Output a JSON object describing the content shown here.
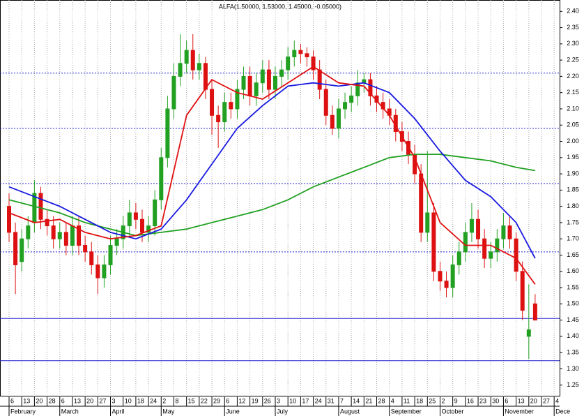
{
  "chart_data": {
    "type": "candlestick",
    "title": "ALFA(1.50000, 1.53000, 1.45000, -0.05000)",
    "xlim": [
      -1.43,
      86.86
    ],
    "ylim": [
      1.215,
      2.435
    ],
    "xticks": [
      {
        "value": 0,
        "label": "6"
      },
      {
        "value": 2,
        "label": "13"
      },
      {
        "value": 4,
        "label": "20"
      },
      {
        "value": 6,
        "label": "28"
      },
      {
        "value": 8,
        "label": "6"
      },
      {
        "value": 10,
        "label": "13"
      },
      {
        "value": 12,
        "label": "20"
      },
      {
        "value": 14,
        "label": "27"
      },
      {
        "value": 16,
        "label": "3"
      },
      {
        "value": 18,
        "label": "10"
      },
      {
        "value": 20,
        "label": "18"
      },
      {
        "value": 22,
        "label": "24"
      },
      {
        "value": 24,
        "label": "2"
      },
      {
        "value": 26,
        "label": "8"
      },
      {
        "value": 28,
        "label": "15"
      },
      {
        "value": 30,
        "label": "22"
      },
      {
        "value": 32,
        "label": "29"
      },
      {
        "value": 34,
        "label": "6"
      },
      {
        "value": 36,
        "label": "12"
      },
      {
        "value": 38,
        "label": "19"
      },
      {
        "value": 40,
        "label": "26"
      },
      {
        "value": 42,
        "label": "3"
      },
      {
        "value": 44,
        "label": "10"
      },
      {
        "value": 46,
        "label": "17"
      },
      {
        "value": 48,
        "label": "24"
      },
      {
        "value": 50,
        "label": "31"
      },
      {
        "value": 52,
        "label": "7"
      },
      {
        "value": 54,
        "label": "14"
      },
      {
        "value": 56,
        "label": "21"
      },
      {
        "value": 58,
        "label": "28"
      },
      {
        "value": 60,
        "label": "4"
      },
      {
        "value": 62,
        "label": "11"
      },
      {
        "value": 64,
        "label": "18"
      },
      {
        "value": 66,
        "label": "25"
      },
      {
        "value": 68,
        "label": "2"
      },
      {
        "value": 70,
        "label": "9"
      },
      {
        "value": 72,
        "label": "16"
      },
      {
        "value": 74,
        "label": "23"
      },
      {
        "value": 76,
        "label": "30"
      },
      {
        "value": 78,
        "label": "6"
      },
      {
        "value": 80,
        "label": "13"
      },
      {
        "value": 82,
        "label": "20"
      },
      {
        "value": 84,
        "label": "27"
      },
      {
        "value": 86,
        "label": "4"
      }
    ],
    "month_ticks": [
      {
        "value": 0,
        "label": "February"
      },
      {
        "value": 8,
        "label": "March"
      },
      {
        "value": 16,
        "label": "April"
      },
      {
        "value": 24,
        "label": "May"
      },
      {
        "value": 34,
        "label": "June"
      },
      {
        "value": 42,
        "label": "July"
      },
      {
        "value": 52,
        "label": "August"
      },
      {
        "value": 60,
        "label": "September"
      },
      {
        "value": 68,
        "label": "October"
      },
      {
        "value": 78,
        "label": "November"
      },
      {
        "value": 86,
        "label": "Dece"
      }
    ],
    "yticks": [
      1.25,
      {
        "value": 1.3,
        "label": "1.30"
      },
      1.35,
      {
        "value": 1.4,
        "label": "1.40"
      },
      1.45,
      {
        "value": 1.5,
        "label": "1.50"
      },
      1.55,
      {
        "value": 1.6,
        "label": "1.60"
      },
      1.65,
      {
        "value": 1.7,
        "label": "1.70"
      },
      1.75,
      {
        "value": 1.8,
        "label": "1.80"
      },
      1.85,
      {
        "value": 1.9,
        "label": "1.90"
      },
      1.95,
      {
        "value": 2.0,
        "label": "2.00"
      },
      2.05,
      {
        "value": 2.1,
        "label": "2.10"
      },
      2.15,
      {
        "value": 2.2,
        "label": "2.20"
      },
      2.25,
      {
        "value": 2.3,
        "label": "2.30"
      },
      2.35,
      {
        "value": 2.4,
        "label": "2.40"
      }
    ],
    "grid": true,
    "levels": [
      {
        "value": 2.21,
        "style": "dotted",
        "color": "#2222cc"
      },
      {
        "value": 2.04,
        "style": "dotted",
        "color": "#2222cc"
      },
      {
        "value": 1.87,
        "style": "dotted",
        "color": "#2222cc"
      },
      {
        "value": 1.66,
        "style": "dotted",
        "color": "#2222cc"
      },
      {
        "value": 1.455,
        "style": "solid",
        "color": "#2222cc"
      },
      {
        "value": 1.325,
        "style": "solid",
        "color": "#2222cc"
      }
    ],
    "up_color": "#22a022",
    "down_color": "#dd1111",
    "open": [
      1.8,
      1.72,
      1.63,
      1.7,
      1.75,
      1.84,
      1.76,
      1.74,
      1.7,
      1.72,
      1.68,
      1.74,
      1.68,
      1.66,
      1.62,
      1.58,
      1.62,
      1.68,
      1.7,
      1.74,
      1.78,
      1.76,
      1.72,
      1.74,
      1.82,
      1.95,
      2.1,
      2.2,
      2.24,
      2.28,
      2.22,
      2.24,
      2.16,
      2.08,
      2.06,
      2.12,
      2.1,
      2.16,
      2.2,
      2.14,
      2.18,
      2.22,
      2.16,
      2.2,
      2.22,
      2.26,
      2.28,
      2.27,
      2.26,
      2.22,
      2.16,
      2.08,
      2.04,
      2.1,
      2.12,
      2.14,
      2.18,
      2.19,
      2.14,
      2.12,
      2.1,
      2.08,
      2.03,
      2.0,
      1.96,
      1.9,
      1.72,
      1.78,
      1.6,
      1.57,
      1.55,
      1.62,
      1.66,
      1.72,
      1.76,
      1.7,
      1.64,
      1.66,
      1.7,
      1.74,
      1.7,
      1.6,
      1.4,
      1.5
    ],
    "high": [
      1.84,
      1.75,
      1.73,
      1.77,
      1.88,
      1.86,
      1.79,
      1.77,
      1.75,
      1.75,
      1.77,
      1.77,
      1.71,
      1.69,
      1.65,
      1.65,
      1.71,
      1.73,
      1.77,
      1.82,
      1.81,
      1.79,
      1.77,
      1.85,
      1.98,
      2.14,
      2.24,
      2.33,
      2.31,
      2.33,
      2.27,
      2.26,
      2.19,
      2.11,
      2.15,
      2.15,
      2.19,
      2.23,
      2.23,
      2.21,
      2.25,
      2.25,
      2.23,
      2.25,
      2.29,
      2.31,
      2.3,
      2.29,
      2.28,
      2.25,
      2.19,
      2.11,
      2.13,
      2.15,
      2.17,
      2.22,
      2.21,
      2.21,
      2.17,
      2.15,
      2.13,
      2.1,
      2.06,
      2.03,
      1.99,
      1.93,
      1.97,
      1.81,
      1.63,
      1.6,
      1.65,
      1.69,
      1.75,
      1.81,
      1.79,
      1.73,
      1.69,
      1.73,
      1.78,
      1.77,
      1.72,
      1.63,
      1.56,
      1.53
    ],
    "low": [
      1.69,
      1.53,
      1.6,
      1.67,
      1.72,
      1.73,
      1.71,
      1.67,
      1.67,
      1.65,
      1.65,
      1.65,
      1.63,
      1.59,
      1.53,
      1.55,
      1.59,
      1.65,
      1.67,
      1.71,
      1.73,
      1.69,
      1.69,
      1.71,
      1.79,
      1.92,
      2.07,
      2.17,
      2.21,
      2.19,
      2.19,
      2.13,
      2.02,
      1.98,
      2.03,
      2.07,
      2.07,
      2.13,
      2.11,
      2.11,
      2.15,
      2.13,
      2.13,
      2.17,
      2.19,
      2.23,
      2.24,
      2.23,
      2.19,
      2.13,
      2.05,
      2.02,
      2.01,
      2.07,
      2.09,
      2.11,
      2.15,
      2.11,
      2.09,
      2.07,
      2.05,
      2.0,
      1.97,
      1.93,
      1.87,
      1.69,
      1.69,
      1.57,
      1.54,
      1.52,
      1.52,
      1.59,
      1.63,
      1.69,
      1.67,
      1.61,
      1.61,
      1.63,
      1.67,
      1.67,
      1.57,
      1.45,
      1.33,
      1.45
    ],
    "close": [
      1.72,
      1.62,
      1.7,
      1.74,
      1.84,
      1.76,
      1.74,
      1.7,
      1.72,
      1.68,
      1.74,
      1.68,
      1.66,
      1.62,
      1.58,
      1.62,
      1.68,
      1.7,
      1.74,
      1.78,
      1.76,
      1.72,
      1.74,
      1.82,
      1.95,
      2.1,
      2.2,
      2.24,
      2.28,
      2.22,
      2.24,
      2.16,
      2.08,
      2.06,
      2.12,
      2.1,
      2.16,
      2.2,
      2.14,
      2.18,
      2.22,
      2.16,
      2.2,
      2.22,
      2.26,
      2.28,
      2.27,
      2.26,
      2.22,
      2.16,
      2.08,
      2.04,
      2.1,
      2.12,
      2.14,
      2.18,
      2.19,
      2.14,
      2.12,
      2.1,
      2.08,
      2.03,
      2.0,
      1.96,
      1.9,
      1.72,
      1.78,
      1.6,
      1.57,
      1.55,
      1.62,
      1.66,
      1.72,
      1.76,
      1.7,
      1.64,
      1.66,
      1.7,
      1.74,
      1.7,
      1.6,
      1.48,
      1.42,
      1.45
    ],
    "lines": [
      {
        "color": "#22a022",
        "x": [
          0,
          4,
          8,
          12,
          16,
          20,
          24,
          28,
          32,
          36,
          40,
          44,
          48,
          52,
          56,
          60,
          64,
          68,
          72,
          76,
          80,
          83
        ],
        "values": [
          1.82,
          1.8,
          1.78,
          1.75,
          1.73,
          1.71,
          1.72,
          1.73,
          1.75,
          1.77,
          1.79,
          1.82,
          1.86,
          1.89,
          1.92,
          1.95,
          1.96,
          1.96,
          1.95,
          1.94,
          1.92,
          1.91
        ]
      },
      {
        "color": "#1a1ae0",
        "x": [
          0,
          4,
          8,
          12,
          16,
          20,
          24,
          28,
          32,
          36,
          40,
          44,
          48,
          52,
          56,
          60,
          64,
          68,
          72,
          76,
          80,
          83
        ],
        "values": [
          1.86,
          1.83,
          1.8,
          1.76,
          1.72,
          1.7,
          1.73,
          1.82,
          1.93,
          2.04,
          2.11,
          2.17,
          2.18,
          2.17,
          2.18,
          2.15,
          2.07,
          1.97,
          1.88,
          1.83,
          1.75,
          1.64
        ]
      },
      {
        "color": "#e01010",
        "x": [
          0,
          4,
          8,
          12,
          16,
          20,
          24,
          28,
          32,
          36,
          40,
          44,
          48,
          52,
          56,
          60,
          64,
          68,
          72,
          76,
          80,
          83
        ],
        "values": [
          1.78,
          1.75,
          1.76,
          1.72,
          1.7,
          1.71,
          1.74,
          2.08,
          2.19,
          2.15,
          2.13,
          2.18,
          2.23,
          2.18,
          2.17,
          2.08,
          1.95,
          1.75,
          1.68,
          1.68,
          1.64,
          1.56
        ]
      }
    ]
  }
}
